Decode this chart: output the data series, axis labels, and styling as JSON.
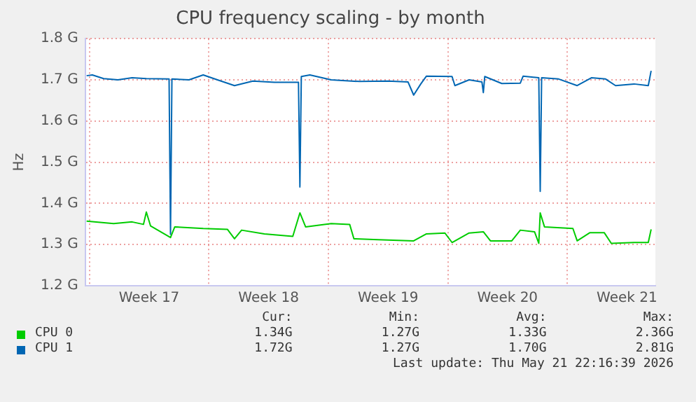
{
  "chart_data": {
    "type": "line",
    "title": "CPU frequency scaling - by month",
    "ylabel": "Hz",
    "xlim": [
      "2026-04-18T18:00",
      "2026-05-22T04:00"
    ],
    "xticks": [
      {
        "value": "2026-04-19T00:00",
        "label": null
      },
      {
        "value": "2026-04-22T12:00",
        "label": "Week 17"
      },
      {
        "value": "2026-04-26T00:00",
        "label": null
      },
      {
        "value": "2026-04-29T12:00",
        "label": "Week 18"
      },
      {
        "value": "2026-05-03T00:00",
        "label": null
      },
      {
        "value": "2026-05-06T12:00",
        "label": "Week 19"
      },
      {
        "value": "2026-05-10T00:00",
        "label": null
      },
      {
        "value": "2026-05-13T12:00",
        "label": "Week 20"
      },
      {
        "value": "2026-05-17T00:00",
        "label": null
      },
      {
        "value": "2026-05-20T12:00",
        "label": "Week 21"
      }
    ],
    "ylim": [
      1.2,
      1.8
    ],
    "yticks": [
      {
        "value": 1.2,
        "label": "1.2 G"
      },
      {
        "value": 1.3,
        "label": "1.3 G"
      },
      {
        "value": 1.4,
        "label": "1.4 G"
      },
      {
        "value": 1.5,
        "label": "1.5 G"
      },
      {
        "value": 1.6,
        "label": "1.6 G"
      },
      {
        "value": 1.7,
        "label": "1.7 G"
      },
      {
        "value": 1.8,
        "label": "1.8 G"
      }
    ],
    "grid": true,
    "legend": "bottom",
    "marker": "none",
    "line_style": "solid",
    "series": [
      {
        "name": "CPU 0",
        "color": "#00cc00",
        "x": [
          "2026-04-18T20:00",
          "2026-04-20T10:00",
          "2026-04-21T12:00",
          "2026-04-22T04:00",
          "2026-04-22T08:00",
          "2026-04-22T14:00",
          "2026-04-23T18:00",
          "2026-04-24T00:00",
          "2026-04-25T16:00",
          "2026-04-27T02:00",
          "2026-04-27T12:00",
          "2026-04-27T22:00",
          "2026-04-29T06:00",
          "2026-04-30T22:00",
          "2026-05-01T08:00",
          "2026-05-01T16:00",
          "2026-05-03T04:00",
          "2026-05-04T06:00",
          "2026-05-04T12:00",
          "2026-05-05T22:00",
          "2026-05-08T00:00",
          "2026-05-08T18:00",
          "2026-05-09T20:00",
          "2026-05-10T06:00",
          "2026-05-11T06:00",
          "2026-05-12T02:00",
          "2026-05-12T12:00",
          "2026-05-13T18:00",
          "2026-05-14T06:00",
          "2026-05-15T02:00",
          "2026-05-15T08:00",
          "2026-05-15T10:00",
          "2026-05-15T16:00",
          "2026-05-17T08:00",
          "2026-05-17T14:00",
          "2026-05-18T08:00",
          "2026-05-19T04:00",
          "2026-05-19T14:00",
          "2026-05-20T22:00",
          "2026-05-21T18:00",
          "2026-05-21T22:00"
        ],
        "values": [
          1.357,
          1.351,
          1.355,
          1.349,
          1.379,
          1.345,
          1.317,
          1.343,
          1.339,
          1.337,
          1.314,
          1.335,
          1.326,
          1.32,
          1.377,
          1.343,
          1.351,
          1.349,
          1.314,
          1.312,
          1.309,
          1.326,
          1.328,
          1.305,
          1.328,
          1.331,
          1.309,
          1.309,
          1.335,
          1.331,
          1.303,
          1.377,
          1.343,
          1.339,
          1.309,
          1.329,
          1.329,
          1.303,
          1.305,
          1.305,
          1.337
        ]
      },
      {
        "name": "CPU 1",
        "color": "#0066b3",
        "x": [
          "2026-04-18T20:00",
          "2026-04-19T04:00",
          "2026-04-19T20:00",
          "2026-04-20T16:00",
          "2026-04-21T12:00",
          "2026-04-22T08:00",
          "2026-04-23T16:00",
          "2026-04-23T18:00",
          "2026-04-23T20:00",
          "2026-04-24T20:00",
          "2026-04-25T16:00",
          "2026-04-26T12:00",
          "2026-04-27T12:00",
          "2026-04-28T14:00",
          "2026-04-29T20:00",
          "2026-05-01T06:00",
          "2026-05-01T08:00",
          "2026-05-01T10:00",
          "2026-05-01T22:00",
          "2026-05-03T04:00",
          "2026-05-04T20:00",
          "2026-05-06T12:00",
          "2026-05-07T16:00",
          "2026-05-08T00:00",
          "2026-05-08T10:00",
          "2026-05-08T18:00",
          "2026-05-10T06:00",
          "2026-05-10T10:00",
          "2026-05-11T06:00",
          "2026-05-12T00:00",
          "2026-05-12T02:00",
          "2026-05-12T04:00",
          "2026-05-13T04:00",
          "2026-05-14T06:00",
          "2026-05-14T10:00",
          "2026-05-15T08:00",
          "2026-05-15T10:00",
          "2026-05-15T12:00",
          "2026-05-16T12:00",
          "2026-05-17T14:00",
          "2026-05-18T10:00",
          "2026-05-19T06:00",
          "2026-05-19T20:00",
          "2026-05-20T22:00",
          "2026-05-21T18:00",
          "2026-05-21T22:00"
        ],
        "values": [
          1.71,
          1.712,
          1.703,
          1.7,
          1.705,
          1.703,
          1.702,
          1.325,
          1.702,
          1.7,
          1.712,
          1.7,
          1.686,
          1.697,
          1.694,
          1.694,
          1.44,
          1.708,
          1.712,
          1.7,
          1.696,
          1.697,
          1.695,
          1.663,
          1.69,
          1.709,
          1.708,
          1.686,
          1.7,
          1.695,
          1.669,
          1.708,
          1.691,
          1.692,
          1.709,
          1.705,
          1.429,
          1.705,
          1.702,
          1.686,
          1.705,
          1.702,
          1.686,
          1.69,
          1.686,
          1.722
        ]
      }
    ],
    "annotations": [
      "Cur:",
      "Min:",
      "Avg:",
      "Max:",
      "1.34G",
      "1.27G",
      "1.33G",
      "2.36G",
      "1.72G",
      "1.27G",
      "1.70G",
      "2.81G",
      "Last update: Thu May 21 22:16:39 2026"
    ]
  }
}
